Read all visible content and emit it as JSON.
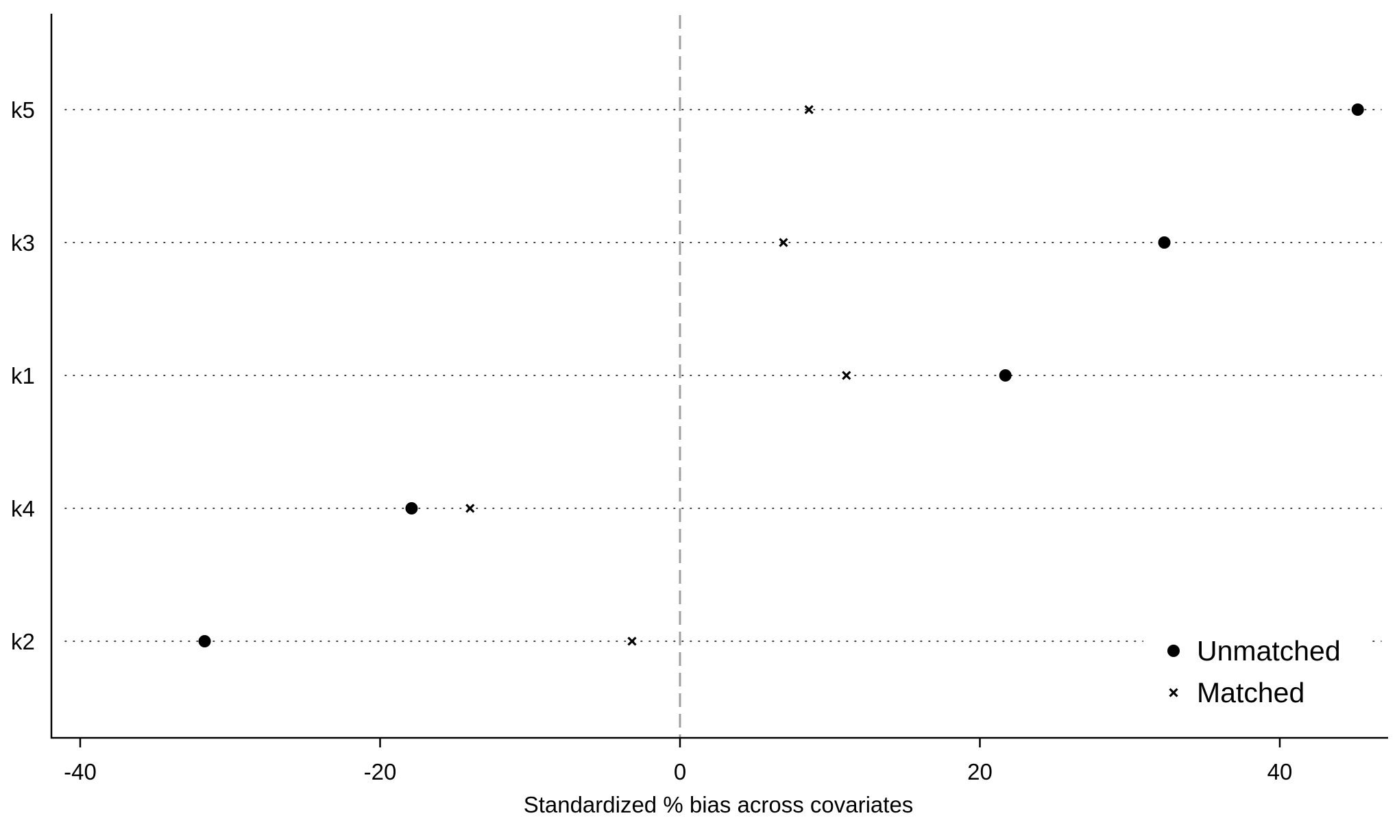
{
  "chart_data": {
    "type": "scatter",
    "title": "",
    "xlabel": "Standardized % bias across covariates",
    "ylabel": "",
    "xlim": [
      -42,
      47
    ],
    "xticks": [
      -40,
      -20,
      0,
      20,
      40
    ],
    "xtick_labels": [
      "-40",
      "-20",
      "0",
      "20",
      "40"
    ],
    "categories": [
      "k5",
      "k3",
      "k1",
      "k4",
      "k2"
    ],
    "reference_line": 0,
    "grid": "dotted horizontal lines at each category",
    "legend_position": "bottom-right",
    "series": [
      {
        "name": "Unmatched",
        "marker": "filled-circle",
        "color": "#000000",
        "values": [
          45.2,
          32.3,
          21.7,
          -17.9,
          -31.7
        ]
      },
      {
        "name": "Matched",
        "marker": "x-cross",
        "color": "#000000",
        "values": [
          8.6,
          6.9,
          11.1,
          -14.0,
          -3.2
        ]
      }
    ],
    "reference_line_color": "#a0a0a0"
  }
}
